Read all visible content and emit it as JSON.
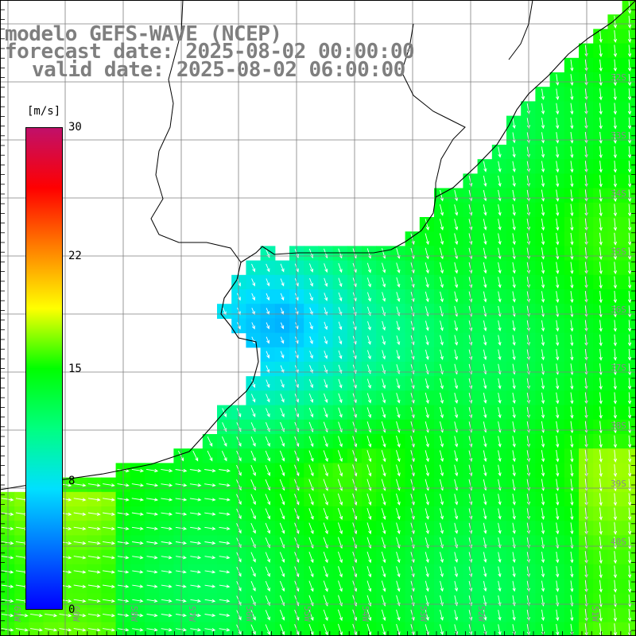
{
  "title": {
    "model": "modelo GEFS-WAVE (NCEP)",
    "forecast": "forecast date: 2025-08-02 00:00:00",
    "valid": "valid date: 2025-08-02 06:00:00"
  },
  "colorbar": {
    "units": "[m/s]",
    "range": [
      0,
      30
    ],
    "labels": [
      {
        "value": 30,
        "text": "30"
      },
      {
        "value": 22,
        "text": "22"
      },
      {
        "value": 15,
        "text": "15"
      },
      {
        "value": 8,
        "text": "8"
      },
      {
        "value": 0,
        "text": "0"
      }
    ],
    "colors": [
      "#0000ff",
      "#0070ff",
      "#00e0ff",
      "#00ff80",
      "#00ff00",
      "#ffff00",
      "#ff8000",
      "#ff0000",
      "#c0106a"
    ]
  },
  "grid": {
    "lat_labels": [
      "32S",
      "33S",
      "34S",
      "35S",
      "36S",
      "37S",
      "38S",
      "39S",
      "40S"
    ],
    "lon_labels": [
      "61W",
      "60W",
      "58W",
      "57W",
      "56W",
      "55W",
      "54W",
      "53W",
      "52W",
      "51W"
    ]
  },
  "map_region": "Rio de la Plata / Uruguay coast",
  "colors": {
    "land": "#ffffff",
    "coast": "#000000",
    "grid": "#808080",
    "arrow": "#ffffff"
  }
}
